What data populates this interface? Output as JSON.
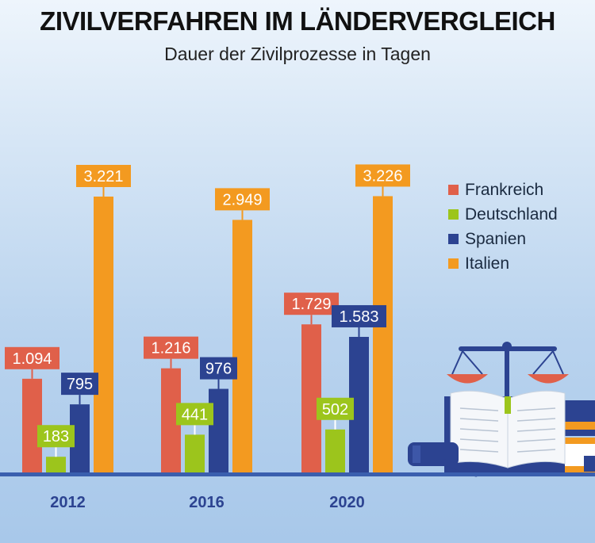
{
  "chart_data": {
    "type": "bar",
    "title": "ZIVILVERFAHREN  IM LÄNDERVERGLEICH",
    "subtitle": "Dauer der Zivilprozesse in Tagen",
    "categories": [
      "2012",
      "2016",
      "2020"
    ],
    "series": [
      {
        "name": "Frankreich",
        "values": [
          1094,
          1216,
          1729
        ],
        "labels": [
          "1.094",
          "1.216",
          "1.729"
        ],
        "color": "#e0604a"
      },
      {
        "name": "Deutschland",
        "values": [
          183,
          441,
          502
        ],
        "labels": [
          "183",
          "441",
          "502"
        ],
        "color": "#9cc51c"
      },
      {
        "name": "Spanien",
        "values": [
          795,
          976,
          1583
        ],
        "labels": [
          "795",
          "976",
          "1.583"
        ],
        "color": "#2c4391"
      },
      {
        "name": "Italien",
        "values": [
          3221,
          2949,
          3226
        ],
        "labels": [
          "3.221",
          "2.949",
          "3.226"
        ],
        "color": "#f39a20"
      }
    ],
    "legend_position": "right",
    "grid": false,
    "ylim": [
      0,
      3500
    ]
  },
  "colors": {
    "baseline": "#3a5fae",
    "text_dark": "#1a2a40"
  },
  "decoration": {
    "illustration": "scales-of-justice-book-gavel-icon"
  }
}
